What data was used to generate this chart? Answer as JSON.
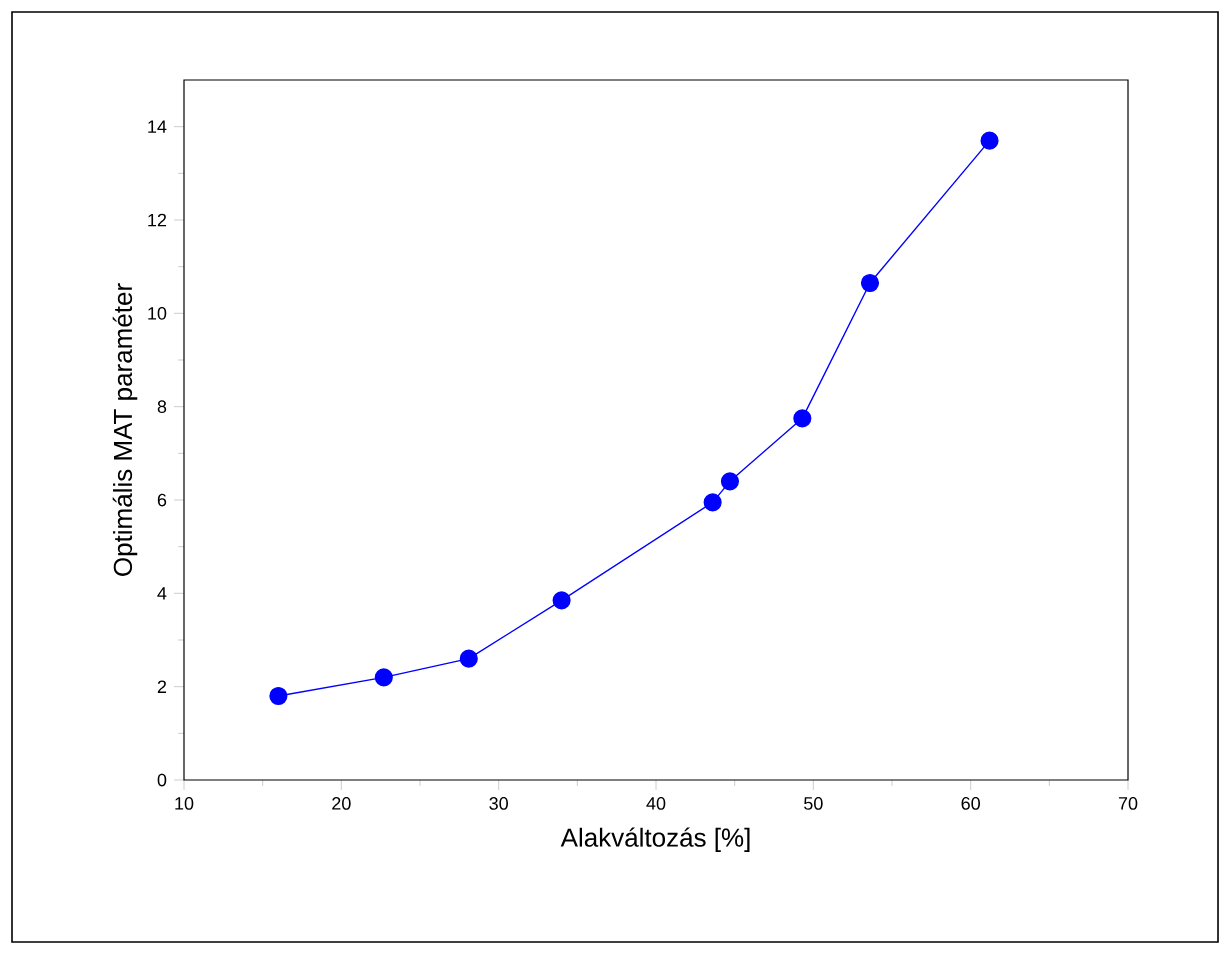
{
  "chart_data": {
    "type": "line",
    "xlabel": "Alakváltozás [%]",
    "ylabel": "Optimális MAT paraméter",
    "x": [
      16.0,
      22.7,
      28.1,
      34.0,
      43.6,
      44.7,
      49.3,
      53.6,
      61.2
    ],
    "series": [
      {
        "color": "#0000ff",
        "values": [
          1.8,
          2.2,
          2.6,
          3.85,
          5.95,
          6.4,
          7.75,
          10.65,
          13.7
        ]
      }
    ],
    "marker": "circle",
    "line_style": "solid",
    "xlim": [
      10,
      70
    ],
    "xticks": [
      10,
      20,
      30,
      40,
      50,
      60,
      70
    ],
    "ylim": [
      0,
      15
    ],
    "yticks": [
      0,
      2,
      4,
      6,
      8,
      10,
      12,
      14
    ],
    "grid": false
  }
}
